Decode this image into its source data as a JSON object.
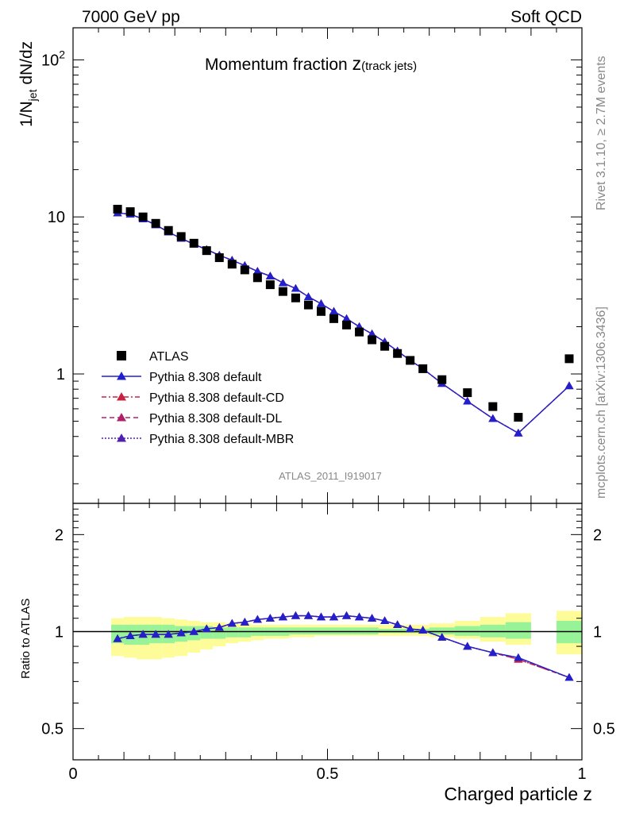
{
  "header": {
    "energy": "7000 GeV pp",
    "category": "Soft QCD",
    "rivet": "Rivet 3.1.10, ≥ 2.7M events",
    "mcplots": "mcplots.cern.ch [arXiv:1306.3436]",
    "analysis": "ATLAS_2011_I919017"
  },
  "chart_data": [
    {
      "type": "scatter",
      "title": "Momentum fraction z(track jets)",
      "title_main": "Momentum fraction ",
      "title_z": "z",
      "title_sub": "(track jets)",
      "ylabel": "1/N_jet dN/dz",
      "ylabel_pre": "1/N",
      "ylabel_sub": "jet",
      "ylabel_post": " dN/dz",
      "yscale": "log",
      "xlim": [
        0,
        1
      ],
      "ylim": [
        0.15,
        160
      ],
      "ytick_labels": [
        {
          "value": 1,
          "label": "1"
        },
        {
          "value": 10,
          "label": "10"
        },
        {
          "value": 100,
          "label": "10",
          "sup": "2"
        }
      ],
      "legend_position": "bottom-left",
      "x": [
        0.0875,
        0.1125,
        0.1375,
        0.1625,
        0.1875,
        0.2125,
        0.2375,
        0.2625,
        0.2875,
        0.3125,
        0.3375,
        0.3625,
        0.3875,
        0.4125,
        0.4375,
        0.4625,
        0.4875,
        0.5125,
        0.5375,
        0.5625,
        0.5875,
        0.6125,
        0.6375,
        0.6625,
        0.6875,
        0.725,
        0.775,
        0.825,
        0.875,
        0.975
      ],
      "series": [
        {
          "name": "ATLAS",
          "marker": "square",
          "color": "#000000",
          "values": [
            11.2,
            10.8,
            10.0,
            9.1,
            8.2,
            7.5,
            6.8,
            6.1,
            5.5,
            5.0,
            4.6,
            4.1,
            3.7,
            3.35,
            3.05,
            2.75,
            2.5,
            2.25,
            2.05,
            1.85,
            1.65,
            1.5,
            1.35,
            1.22,
            1.08,
            0.92,
            0.76,
            0.62,
            0.53,
            1.25
          ]
        },
        {
          "name": "Pythia 8.308 default",
          "marker": "triangle",
          "line": "solid",
          "color": "#2020cc",
          "values": [
            10.6,
            10.4,
            9.7,
            8.9,
            8.0,
            7.3,
            6.7,
            6.2,
            5.7,
            5.3,
            4.9,
            4.5,
            4.2,
            3.8,
            3.5,
            3.1,
            2.8,
            2.5,
            2.25,
            2.0,
            1.8,
            1.6,
            1.4,
            1.22,
            1.08,
            0.87,
            0.67,
            0.52,
            0.42,
            0.84
          ]
        },
        {
          "name": "Pythia 8.308 default-CD",
          "marker": "triangle",
          "line": "dashdot",
          "color": "#cc2040",
          "values": [
            10.6,
            10.4,
            9.7,
            8.9,
            8.0,
            7.3,
            6.7,
            6.2,
            5.7,
            5.3,
            4.9,
            4.5,
            4.2,
            3.8,
            3.5,
            3.1,
            2.8,
            2.5,
            2.25,
            2.0,
            1.8,
            1.6,
            1.4,
            1.22,
            1.08,
            0.87,
            0.67,
            0.52,
            0.42,
            0.84
          ]
        },
        {
          "name": "Pythia 8.308 default-DL",
          "marker": "triangle",
          "line": "dashed",
          "color": "#b0206a",
          "values": [
            10.6,
            10.4,
            9.7,
            8.9,
            8.0,
            7.3,
            6.7,
            6.2,
            5.7,
            5.3,
            4.9,
            4.5,
            4.2,
            3.8,
            3.5,
            3.1,
            2.8,
            2.5,
            2.25,
            2.0,
            1.8,
            1.6,
            1.4,
            1.22,
            1.08,
            0.87,
            0.67,
            0.52,
            0.42,
            0.84
          ]
        },
        {
          "name": "Pythia 8.308 default-MBR",
          "marker": "triangle",
          "line": "dotted",
          "color": "#5020b0",
          "values": [
            10.6,
            10.4,
            9.7,
            8.9,
            8.0,
            7.3,
            6.7,
            6.2,
            5.7,
            5.3,
            4.9,
            4.5,
            4.2,
            3.8,
            3.5,
            3.1,
            2.8,
            2.5,
            2.25,
            2.0,
            1.8,
            1.6,
            1.4,
            1.22,
            1.08,
            0.87,
            0.67,
            0.52,
            0.42,
            0.84
          ]
        }
      ]
    },
    {
      "type": "line",
      "xlabel": "Charged particle z",
      "ylabel": "Ratio to ATLAS",
      "yscale": "log",
      "xlim": [
        0,
        1
      ],
      "ylim": [
        0.4,
        2.5
      ],
      "xtick_labels": [
        {
          "value": 0,
          "label": "0"
        },
        {
          "value": 0.5,
          "label": "0.5"
        },
        {
          "value": 1,
          "label": "1"
        }
      ],
      "ytick_labels": [
        {
          "value": 0.5,
          "label": "0.5"
        },
        {
          "value": 1,
          "label": "1"
        },
        {
          "value": 2,
          "label": "2"
        }
      ],
      "reference_line": 1,
      "bin_edges": [
        0.075,
        0.1,
        0.125,
        0.15,
        0.175,
        0.2,
        0.225,
        0.25,
        0.275,
        0.3,
        0.325,
        0.35,
        0.375,
        0.4,
        0.425,
        0.45,
        0.475,
        0.5,
        0.525,
        0.55,
        0.575,
        0.6,
        0.625,
        0.65,
        0.675,
        0.7,
        0.75,
        0.8,
        0.85,
        0.9,
        0.95,
        1.0
      ],
      "band_yellow_low": [
        0.84,
        0.83,
        0.82,
        0.82,
        0.83,
        0.84,
        0.86,
        0.88,
        0.9,
        0.92,
        0.93,
        0.94,
        0.95,
        0.95,
        0.96,
        0.96,
        0.97,
        0.97,
        0.97,
        0.97,
        0.97,
        0.97,
        0.97,
        0.97,
        0.97,
        0.96,
        0.95,
        0.93,
        0.91,
        null,
        0.85
      ],
      "band_yellow_high": [
        1.1,
        1.11,
        1.11,
        1.11,
        1.1,
        1.09,
        1.08,
        1.07,
        1.07,
        1.06,
        1.06,
        1.05,
        1.05,
        1.05,
        1.05,
        1.05,
        1.05,
        1.05,
        1.05,
        1.05,
        1.05,
        1.05,
        1.05,
        1.05,
        1.05,
        1.06,
        1.08,
        1.11,
        1.14,
        null,
        1.16
      ],
      "band_green_low": [
        0.92,
        0.91,
        0.91,
        0.92,
        0.92,
        0.93,
        0.94,
        0.95,
        0.95,
        0.96,
        0.96,
        0.97,
        0.97,
        0.97,
        0.98,
        0.98,
        0.98,
        0.98,
        0.98,
        0.98,
        0.98,
        0.99,
        0.99,
        0.99,
        0.99,
        0.98,
        0.97,
        0.96,
        0.95,
        null,
        0.92
      ],
      "band_green_high": [
        1.05,
        1.05,
        1.05,
        1.05,
        1.05,
        1.04,
        1.04,
        1.04,
        1.03,
        1.03,
        1.03,
        1.03,
        1.03,
        1.03,
        1.03,
        1.03,
        1.03,
        1.03,
        1.03,
        1.03,
        1.03,
        1.02,
        1.02,
        1.02,
        1.02,
        1.03,
        1.04,
        1.05,
        1.07,
        null,
        1.08
      ],
      "x": [
        0.0875,
        0.1125,
        0.1375,
        0.1625,
        0.1875,
        0.2125,
        0.2375,
        0.2625,
        0.2875,
        0.3125,
        0.3375,
        0.3625,
        0.3875,
        0.4125,
        0.4375,
        0.4625,
        0.4875,
        0.5125,
        0.5375,
        0.5625,
        0.5875,
        0.6125,
        0.6375,
        0.6625,
        0.6875,
        0.725,
        0.775,
        0.825,
        0.875,
        0.975
      ],
      "series": [
        {
          "name": "Pythia 8.308 default",
          "color": "#2020cc",
          "values": [
            0.95,
            0.97,
            0.98,
            0.98,
            0.98,
            0.99,
            1.0,
            1.02,
            1.03,
            1.06,
            1.07,
            1.09,
            1.1,
            1.11,
            1.12,
            1.12,
            1.11,
            1.11,
            1.12,
            1.11,
            1.1,
            1.08,
            1.05,
            1.02,
            1.01,
            0.96,
            0.9,
            0.86,
            0.83,
            0.72
          ]
        },
        {
          "name": "Pythia 8.308 default-CD",
          "color": "#cc2040",
          "values": [
            0.95,
            0.97,
            0.98,
            0.98,
            0.98,
            0.99,
            1.0,
            1.02,
            1.03,
            1.06,
            1.07,
            1.09,
            1.1,
            1.11,
            1.12,
            1.12,
            1.11,
            1.11,
            1.12,
            1.11,
            1.1,
            1.08,
            1.05,
            1.02,
            1.01,
            0.96,
            0.9,
            0.86,
            0.82,
            0.72
          ]
        },
        {
          "name": "Pythia 8.308 default-DL",
          "color": "#b0206a",
          "values": [
            0.95,
            0.97,
            0.98,
            0.98,
            0.98,
            0.99,
            1.0,
            1.02,
            1.03,
            1.06,
            1.07,
            1.09,
            1.1,
            1.11,
            1.12,
            1.12,
            1.11,
            1.11,
            1.12,
            1.11,
            1.1,
            1.08,
            1.05,
            1.02,
            1.01,
            0.96,
            0.9,
            0.86,
            0.82,
            0.72
          ]
        },
        {
          "name": "Pythia 8.308 default-MBR",
          "color": "#5020b0",
          "values": [
            0.95,
            0.97,
            0.98,
            0.98,
            0.98,
            0.99,
            1.0,
            1.02,
            1.03,
            1.06,
            1.07,
            1.09,
            1.1,
            1.11,
            1.12,
            1.12,
            1.11,
            1.11,
            1.12,
            1.11,
            1.1,
            1.08,
            1.05,
            1.02,
            1.01,
            0.96,
            0.9,
            0.86,
            0.83,
            0.72
          ]
        }
      ]
    }
  ]
}
